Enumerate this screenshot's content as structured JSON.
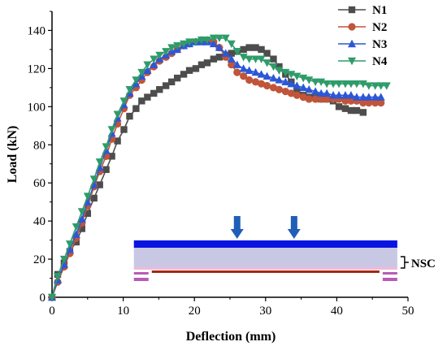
{
  "chart_data": {
    "type": "line",
    "xlabel": "Deflection (mm)",
    "ylabel": "Load (kN)",
    "xlim": [
      0,
      50
    ],
    "ylim": [
      0,
      150
    ],
    "xticks": [
      0,
      10,
      20,
      30,
      40,
      50
    ],
    "yticks": [
      0,
      20,
      40,
      60,
      80,
      100,
      120,
      140
    ],
    "grid": false,
    "legend_position": "top-right",
    "series": [
      {
        "name": "N1",
        "color": "#4d4d4d",
        "marker": "square",
        "x": [
          0,
          0.8,
          1.7,
          2.5,
          3.4,
          4.2,
          5.0,
          5.9,
          6.7,
          7.6,
          8.4,
          9.2,
          10.1,
          10.9,
          11.8,
          12.6,
          13.4,
          14.3,
          15.1,
          16.0,
          16.8,
          17.6,
          18.5,
          19.3,
          20.2,
          21.0,
          21.8,
          22.7,
          23.5,
          24.4,
          25.2,
          26.0,
          26.9,
          27.7,
          28.6,
          29.4,
          30.2,
          31.1,
          31.9,
          32.8,
          33.6,
          34.4,
          35.3,
          36.1,
          37.0,
          37.8,
          38.6,
          39.5,
          40.3,
          41.2,
          42.0,
          42.8,
          43.7
        ],
        "y": [
          0,
          12,
          18,
          24,
          29,
          36,
          44,
          52,
          59,
          67,
          74,
          82,
          88,
          95,
          99,
          103,
          105,
          107,
          109,
          111,
          113,
          115,
          117,
          119,
          120,
          122,
          123,
          125,
          126,
          127,
          128,
          129,
          130,
          131,
          131,
          130,
          128,
          125,
          121,
          117,
          113,
          109,
          106,
          105,
          105,
          104,
          104,
          103,
          100,
          99,
          98,
          98,
          97
        ]
      },
      {
        "name": "N2",
        "color": "#c0553a",
        "marker": "circle",
        "x": [
          0,
          0.8,
          1.7,
          2.5,
          3.4,
          4.2,
          5.0,
          5.9,
          6.7,
          7.6,
          8.4,
          9.2,
          10.1,
          10.9,
          11.8,
          12.6,
          13.4,
          14.3,
          15.1,
          16.0,
          16.8,
          17.6,
          18.5,
          19.3,
          20.2,
          21.0,
          21.8,
          22.7,
          23.5,
          24.4,
          25.2,
          26.0,
          26.9,
          27.7,
          28.6,
          29.4,
          30.2,
          31.1,
          31.9,
          32.8,
          33.6,
          34.4,
          35.3,
          36.1,
          37.0,
          37.8,
          38.6,
          39.5,
          40.3,
          41.2,
          42.0,
          42.8,
          43.7,
          44.5,
          45.4,
          46.2
        ],
        "y": [
          0,
          8,
          16,
          23,
          31,
          39,
          48,
          58,
          66,
          74,
          83,
          91,
          99,
          106,
          110,
          114,
          118,
          121,
          124,
          126,
          128,
          130,
          132,
          133,
          134,
          135,
          135,
          134,
          131,
          126,
          122,
          118,
          116,
          114,
          113,
          112,
          111,
          110,
          109,
          108,
          107,
          106,
          105,
          104,
          104,
          104,
          104,
          104,
          104,
          103,
          103,
          103,
          102,
          102,
          102,
          102
        ]
      },
      {
        "name": "N3",
        "color": "#2c57d6",
        "marker": "triangle-up",
        "x": [
          0,
          0.8,
          1.7,
          2.5,
          3.4,
          4.2,
          5.0,
          5.9,
          6.7,
          7.6,
          8.4,
          9.2,
          10.1,
          10.9,
          11.8,
          12.6,
          13.4,
          14.3,
          15.1,
          16.0,
          16.8,
          17.6,
          18.5,
          19.3,
          20.2,
          21.0,
          21.8,
          22.7,
          23.5,
          24.4,
          25.2,
          26.0,
          26.9,
          27.7,
          28.6,
          29.4,
          30.2,
          31.1,
          31.9,
          32.8,
          33.6,
          34.4,
          35.3,
          36.1,
          37.0,
          37.8,
          38.6,
          39.5,
          40.3,
          41.2,
          42.0,
          42.8,
          43.7,
          44.5,
          45.4,
          46.2
        ],
        "y": [
          0,
          9,
          17,
          25,
          33,
          41,
          50,
          59,
          68,
          77,
          86,
          94,
          101,
          107,
          112,
          116,
          119,
          122,
          125,
          127,
          129,
          130,
          132,
          133,
          134,
          134,
          134,
          133,
          131,
          128,
          125,
          122,
          120,
          119,
          118,
          117,
          116,
          115,
          114,
          113,
          112,
          111,
          110,
          109,
          108,
          107,
          107,
          106,
          106,
          106,
          106,
          105,
          105,
          105,
          105,
          105
        ]
      },
      {
        "name": "N4",
        "color": "#2e9c6a",
        "marker": "triangle-down",
        "x": [
          0,
          0.8,
          1.7,
          2.5,
          3.4,
          4.2,
          5.0,
          5.9,
          6.7,
          7.6,
          8.4,
          9.2,
          10.1,
          10.9,
          11.8,
          12.6,
          13.4,
          14.3,
          15.1,
          16.0,
          16.8,
          17.6,
          18.5,
          19.3,
          20.2,
          21.0,
          21.8,
          22.7,
          23.5,
          24.4,
          25.2,
          26.0,
          26.9,
          27.7,
          28.6,
          29.4,
          30.2,
          31.1,
          31.9,
          32.8,
          33.6,
          34.4,
          35.3,
          36.1,
          37.0,
          37.8,
          38.6,
          39.5,
          40.3,
          41.2,
          42.0,
          42.8,
          43.7,
          44.5,
          45.4,
          46.2,
          47.0
        ],
        "y": [
          0,
          11,
          20,
          28,
          37,
          45,
          53,
          62,
          71,
          79,
          88,
          96,
          103,
          109,
          114,
          118,
          122,
          125,
          127,
          129,
          131,
          132,
          133,
          134,
          134,
          135,
          135,
          136,
          136,
          136,
          133,
          129,
          126,
          125,
          125,
          125,
          123,
          121,
          119,
          118,
          117,
          116,
          115,
          114,
          113,
          113,
          112,
          112,
          112,
          112,
          112,
          112,
          112,
          111,
          111,
          111,
          111
        ]
      }
    ],
    "inset": {
      "label": "NSC",
      "load_points_x": [
        26,
        34
      ],
      "span_x": [
        11.5,
        48.5
      ],
      "arrow_color": "#1f5fb8",
      "top_plate_color": "#0a14e0",
      "slab_color": "#c8c8e4",
      "rebar_color": "#a02a10",
      "support_color": "#b85ab8"
    }
  }
}
